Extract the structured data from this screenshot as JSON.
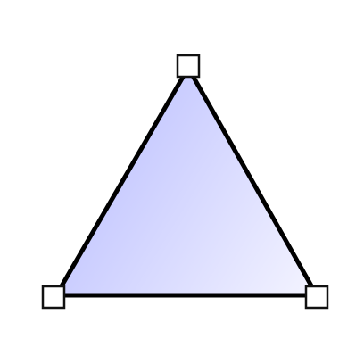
{
  "canvas": {
    "shape": {
      "type": "triangle",
      "selected": true,
      "fill_gradient": [
        "#c7caff",
        "#f4f4ff"
      ],
      "stroke_color": "#000000",
      "handle_count": 3
    }
  }
}
